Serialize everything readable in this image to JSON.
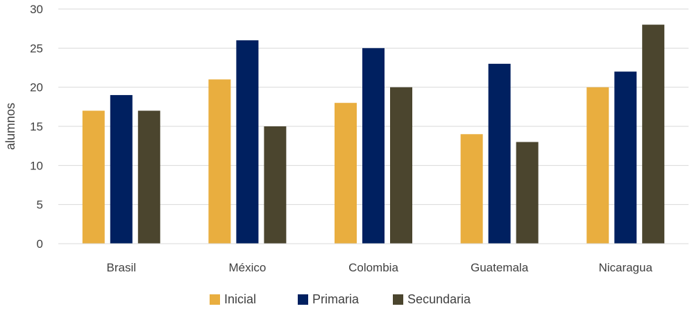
{
  "chart_data": {
    "type": "bar",
    "categories": [
      "Brasil",
      "México",
      "Colombia",
      "Guatemala",
      "Nicaragua"
    ],
    "series": [
      {
        "name": "Inicial",
        "color": "#E9AE3F",
        "values": [
          17,
          21,
          18,
          14,
          20
        ]
      },
      {
        "name": "Primaria",
        "color": "#002060",
        "values": [
          19,
          26,
          25,
          23,
          22
        ]
      },
      {
        "name": "Secundaria",
        "color": "#4B452E",
        "values": [
          17,
          15,
          20,
          13,
          28
        ]
      }
    ],
    "ylabel": "alumnos",
    "ylim": [
      0,
      30
    ],
    "yticks": [
      0,
      5,
      10,
      15,
      20,
      25,
      30
    ],
    "grid": true,
    "legend_position": "bottom"
  }
}
